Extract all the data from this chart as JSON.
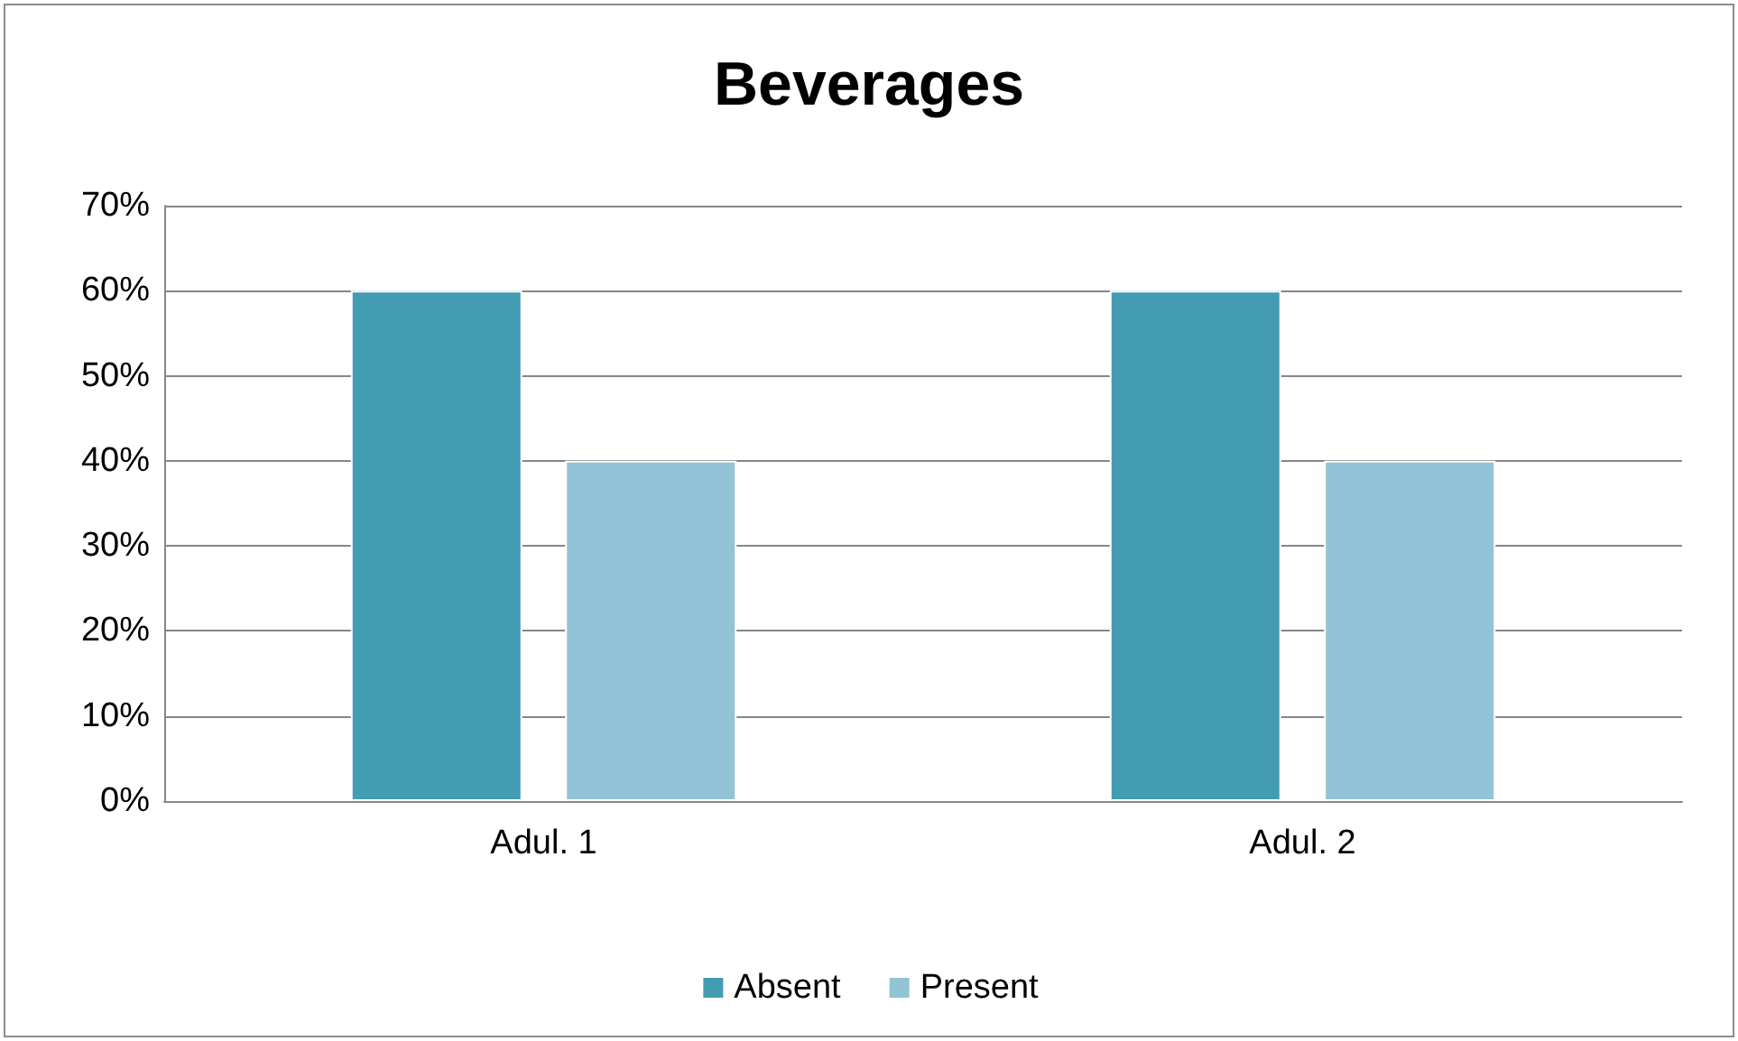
{
  "chart_data": {
    "type": "bar",
    "title": "Beverages",
    "categories": [
      "Adul. 1",
      "Adul. 2"
    ],
    "series": [
      {
        "name": "Absent",
        "color": "#439cb2",
        "values": [
          60,
          60
        ]
      },
      {
        "name": "Present",
        "color": "#93c3d6",
        "values": [
          40,
          40
        ]
      }
    ],
    "ylim": [
      0,
      70
    ],
    "yticks": [
      {
        "value": 0,
        "label": "0%"
      },
      {
        "value": 10,
        "label": "10%"
      },
      {
        "value": 20,
        "label": "20%"
      },
      {
        "value": 30,
        "label": "30%"
      },
      {
        "value": 40,
        "label": "40%"
      },
      {
        "value": 50,
        "label": "50%"
      },
      {
        "value": 60,
        "label": "60%"
      },
      {
        "value": 70,
        "label": "70%"
      }
    ],
    "grid": "y",
    "legend": "bottom"
  }
}
